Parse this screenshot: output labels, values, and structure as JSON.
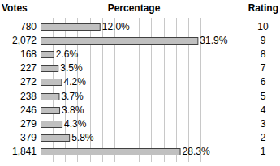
{
  "chart_data": {
    "type": "bar",
    "orientation": "horizontal",
    "xlabel": "Percentage",
    "votes_label": "Votes",
    "ylabel": "Rating",
    "categories": [
      10,
      9,
      8,
      7,
      6,
      5,
      4,
      3,
      2,
      1
    ],
    "values": [
      12.0,
      31.9,
      2.6,
      3.5,
      4.2,
      3.7,
      3.8,
      4.3,
      5.8,
      28.3
    ],
    "value_labels": [
      "12.0%",
      "31.9%",
      "2.6%",
      "3.5%",
      "4.2%",
      "3.7%",
      "3.8%",
      "4.3%",
      "5.8%",
      "28.3%"
    ],
    "votes": [
      {
        "value": 780,
        "label": "780"
      },
      {
        "value": 2072,
        "label": "2,072"
      },
      {
        "value": 168,
        "label": "168"
      },
      {
        "value": 227,
        "label": "227"
      },
      {
        "value": 272,
        "label": "272"
      },
      {
        "value": 238,
        "label": "238"
      },
      {
        "value": 246,
        "label": "246"
      },
      {
        "value": 279,
        "label": "279"
      },
      {
        "value": 379,
        "label": "379"
      },
      {
        "value": 1841,
        "label": "1,841"
      }
    ],
    "color": "#c0c0c0",
    "xlim": [
      0,
      32.5
    ],
    "xticks": [
      0,
      2.5,
      5,
      7.5,
      10,
      12.5,
      15,
      17.5,
      20,
      22.5,
      25,
      27.5,
      30,
      32.5
    ],
    "grid": true,
    "tick_labels": false,
    "data_labels": true
  }
}
